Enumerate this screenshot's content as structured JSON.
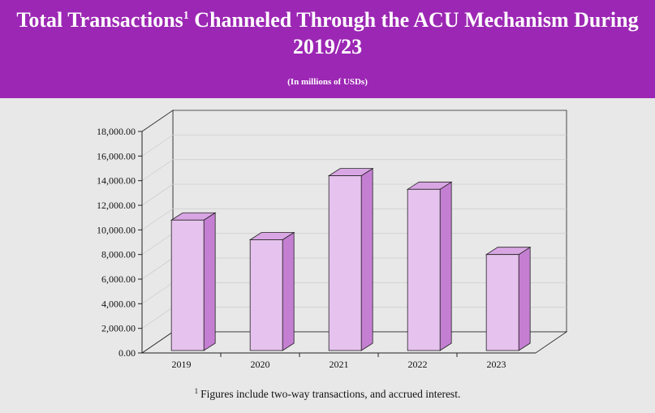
{
  "header": {
    "title_prefix": "Total Transactions",
    "title_sup": "1",
    "title_suffix": " Channeled Through the ACU Mechanism During",
    "title_line2": "2019/23",
    "subtitle": "(In millions of USDs)",
    "background_color": "#9c27b4"
  },
  "footnote": {
    "marker": "1",
    "text": "Figures include two-way transactions, and  accrued interest."
  },
  "chart_data": {
    "type": "bar",
    "style": "3d",
    "categories": [
      "2019",
      "2020",
      "2021",
      "2022",
      "2023"
    ],
    "values": [
      10600,
      9000,
      14200,
      13100,
      7800
    ],
    "ylim": [
      0,
      18000
    ],
    "yticks": [
      "0.00",
      "2,000.00",
      "4,000.00",
      "6,000.00",
      "8,000.00",
      "10,000.00",
      "12,000.00",
      "14,000.00",
      "16,000.00",
      "18,000.00"
    ],
    "grid": true,
    "legend": "none",
    "colors": {
      "bar_front": "#e6c3ee",
      "bar_side": "#c47fd2",
      "bar_top": "#d9a6e4",
      "stroke": "#222222"
    }
  }
}
